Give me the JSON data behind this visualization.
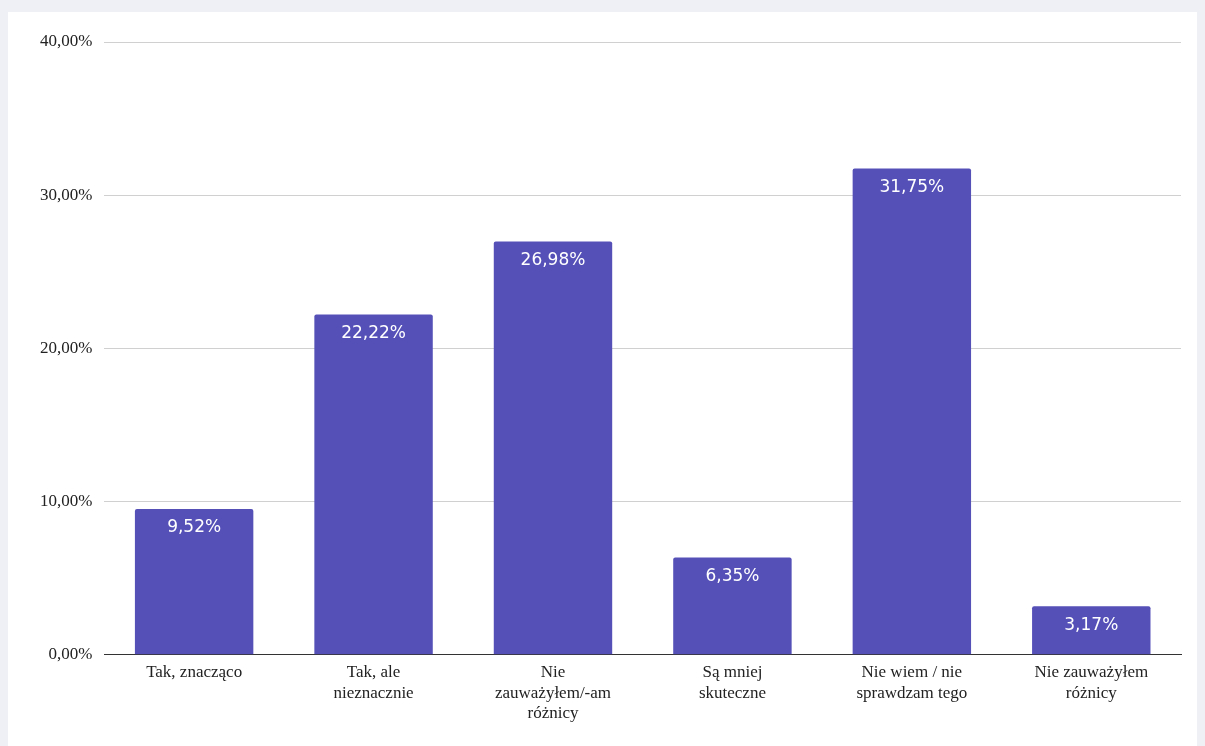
{
  "chart_data": {
    "type": "bar",
    "categories": [
      "Tak, znacząco",
      "Tak, ale nieznacznie",
      "Nie zauważyłem/-am różnicy",
      "Są mniej skuteczne",
      "Nie wiem / nie sprawdzam tego",
      "Nie zauważyłem różnicy"
    ],
    "values": [
      9.52,
      22.22,
      26.98,
      6.35,
      31.75,
      3.17
    ],
    "value_labels": [
      "9,52%",
      "22,22%",
      "26,98%",
      "6,35%",
      "31,75%",
      "3,17%"
    ],
    "color": "#5550b8",
    "ylim": [
      0,
      40
    ],
    "yticks": [
      {
        "value": 0,
        "label": "0,00%"
      },
      {
        "value": 10,
        "label": "10,00%"
      },
      {
        "value": 20,
        "label": "20,00%"
      },
      {
        "value": 30,
        "label": "30,00%"
      },
      {
        "value": 40,
        "label": "40,00%"
      }
    ],
    "grid": "y",
    "legend": false
  }
}
